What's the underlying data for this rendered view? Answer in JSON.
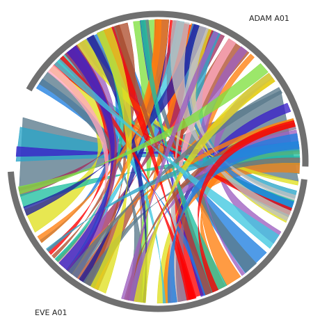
{
  "labels": {
    "genome_a": "ADAM A01",
    "genome_b": "EVE A01"
  },
  "colors": {
    "ring": "#707070",
    "ribbons": [
      "#ff0000",
      "#1f7fe0",
      "#5a7a8c",
      "#2aa5c8",
      "#3a20c8",
      "#80e040",
      "#e0e020",
      "#ff7f0e",
      "#b05030",
      "#a03060",
      "#20c0a0",
      "#c0c0c0",
      "#40c8e0",
      "#8f6f8f",
      "#9d5fc0",
      "#ffa8c0",
      "#2020a0"
    ]
  }
}
